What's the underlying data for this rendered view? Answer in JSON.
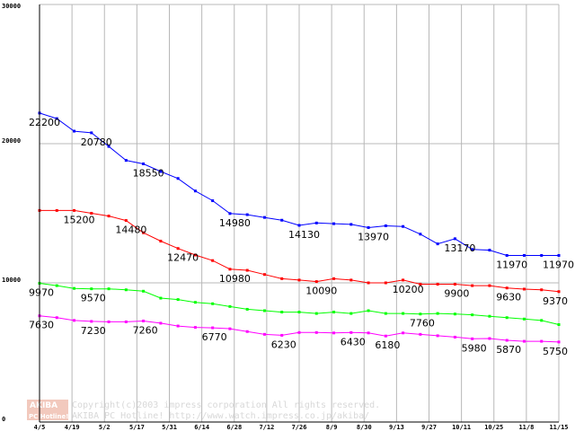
{
  "chart_data": {
    "type": "line",
    "title": "",
    "xlabel": "",
    "ylabel": "",
    "ylim": [
      0,
      30000
    ],
    "y_ticks": [
      0,
      10000,
      20000,
      30000
    ],
    "y_tick_labels": [
      "0",
      "10000",
      "20000",
      "30000"
    ],
    "x_tick_labels": [
      "4/5",
      "4/19",
      "5/2",
      "5/17",
      "5/31",
      "6/14",
      "6/28",
      "7/12",
      "7/26",
      "8/9",
      "8/30",
      "9/13",
      "9/27",
      "10/11",
      "10/25",
      "11/8",
      "11/15"
    ],
    "x_count": 31,
    "grid": true,
    "series": [
      {
        "name": "series-blue",
        "color": "#0000ff",
        "values": [
          22200,
          21800,
          20900,
          20780,
          19800,
          18800,
          18550,
          18000,
          17500,
          16600,
          15900,
          14980,
          14900,
          14700,
          14500,
          14130,
          14300,
          14250,
          14200,
          13970,
          14100,
          14050,
          13500,
          12800,
          13170,
          12400,
          12350,
          11970,
          11970,
          11970,
          11970
        ],
        "labels": [
          {
            "i": 0,
            "text": "22200"
          },
          {
            "i": 3,
            "text": "20780"
          },
          {
            "i": 6,
            "text": "18550"
          },
          {
            "i": 11,
            "text": "14980"
          },
          {
            "i": 15,
            "text": "14130"
          },
          {
            "i": 19,
            "text": "13970"
          },
          {
            "i": 24,
            "text": "13170"
          },
          {
            "i": 27,
            "text": "11970"
          },
          {
            "i": 30,
            "text": "11970"
          }
        ]
      },
      {
        "name": "series-red",
        "color": "#ff0000",
        "values": [
          15200,
          15200,
          15200,
          15000,
          14800,
          14480,
          13600,
          13000,
          12470,
          12000,
          11600,
          10980,
          10900,
          10600,
          10300,
          10200,
          10090,
          10300,
          10200,
          10000,
          10000,
          10200,
          9900,
          9900,
          9900,
          9800,
          9800,
          9630,
          9550,
          9500,
          9370
        ],
        "labels": [
          {
            "i": 2,
            "text": "15200"
          },
          {
            "i": 5,
            "text": "14480"
          },
          {
            "i": 8,
            "text": "12470"
          },
          {
            "i": 11,
            "text": "10980"
          },
          {
            "i": 16,
            "text": "10090"
          },
          {
            "i": 21,
            "text": "10200"
          },
          {
            "i": 24,
            "text": "9900"
          },
          {
            "i": 27,
            "text": "9630"
          },
          {
            "i": 30,
            "text": "9370"
          }
        ]
      },
      {
        "name": "series-green",
        "color": "#00ff00",
        "values": [
          9970,
          9800,
          9600,
          9570,
          9570,
          9500,
          9400,
          8900,
          8800,
          8600,
          8500,
          8300,
          8100,
          8000,
          7900,
          7900,
          7800,
          7900,
          7800,
          8000,
          7800,
          7800,
          7760,
          7800,
          7760,
          7700,
          7600,
          7500,
          7400,
          7300,
          7000
        ],
        "labels": [
          {
            "i": 0,
            "text": "9970"
          },
          {
            "i": 3,
            "text": "9570"
          },
          {
            "i": 22,
            "text": "7760"
          }
        ]
      },
      {
        "name": "series-magenta",
        "color": "#ff00ff",
        "values": [
          7630,
          7500,
          7300,
          7230,
          7200,
          7200,
          7260,
          7100,
          6900,
          6800,
          6770,
          6700,
          6500,
          6300,
          6230,
          6430,
          6430,
          6400,
          6430,
          6400,
          6180,
          6400,
          6300,
          6200,
          6100,
          5980,
          6000,
          5870,
          5800,
          5800,
          5750
        ],
        "labels": [
          {
            "i": 0,
            "text": "7630"
          },
          {
            "i": 3,
            "text": "7230"
          },
          {
            "i": 6,
            "text": "7260"
          },
          {
            "i": 10,
            "text": "6770"
          },
          {
            "i": 14,
            "text": "6230"
          },
          {
            "i": 18,
            "text": "6430"
          },
          {
            "i": 20,
            "text": "6180"
          },
          {
            "i": 25,
            "text": "5980"
          },
          {
            "i": 27,
            "text": "5870"
          },
          {
            "i": 30,
            "text": "5750"
          }
        ]
      }
    ]
  },
  "footer": {
    "logo_top": "AKIBA",
    "logo_bottom": "PC Hotline!",
    "copyright_line1": "Copyright(c)2003 impress corporation All rights reserved.",
    "copyright_line2": "AKIBA PC Hotline!  http://www.watch.impress.co.jp/akiba/"
  }
}
